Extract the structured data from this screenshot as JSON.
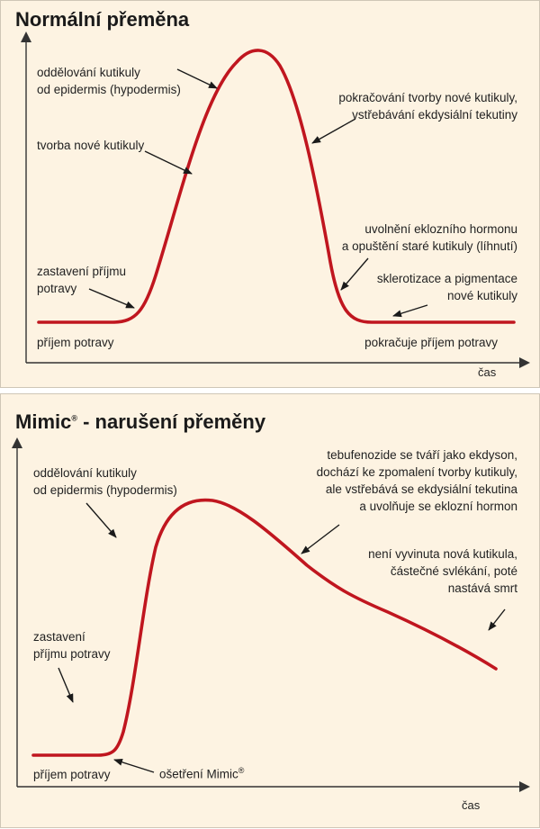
{
  "normal": {
    "title": "Normální přeměna",
    "labels": {
      "separation_line1": "oddělování kutikuly",
      "separation_line2": "od epidermis (hypodermis)",
      "formation": "tvorba nové kutikuly",
      "continuation_line1": "pokračování tvorby nové kutikuly,",
      "continuation_line2": "vstřebávání ekdysiální tekutiny",
      "release_line1": "uvolnění eklozního hormonu",
      "release_line2": "a opuštění staré kutikuly (líhnutí)",
      "sclerotization_line1": "sklerotizace a pigmentace",
      "sclerotization_line2": "nové kutikuly",
      "stop_feeding_line1": "zastavení příjmu",
      "stop_feeding_line2": "potravy",
      "feeding": "příjem potravy",
      "feeding_continues": "pokračuje příjem potravy"
    },
    "axis_x_label": "čas"
  },
  "mimic": {
    "title_main": "Mimic",
    "title_mark": "®",
    "title_rest": " - narušení přeměny",
    "labels": {
      "separation_line1": "oddělování kutikuly",
      "separation_line2": "od epidermis (hypodermis)",
      "tebufenozide_line1": "tebufenozide se tváří jako ekdyson,",
      "tebufenozide_line2": "dochází ke zpomalení tvorby kutikuly,",
      "tebufenozide_line3": "ale vstřebává se ekdysiální tekutina",
      "tebufenozide_line4": "a uvolňuje se eklozní hormon",
      "death_line1": "není vyvinuta nová kutikula,",
      "death_line2": "částečné svlékání, poté",
      "death_line3": "nastává smrt",
      "stop_feeding_line1": "zastavení",
      "stop_feeding_line2": "příjmu potravy",
      "feeding": "příjem potravy",
      "treatment": "ošetření Mimic",
      "treatment_mark": "®"
    },
    "axis_x_label": "čas"
  },
  "colors": {
    "curve": "#c0161f",
    "panel_bg": "#fdf3e2",
    "axis": "#333333",
    "arrow": "#1a1a1a"
  }
}
